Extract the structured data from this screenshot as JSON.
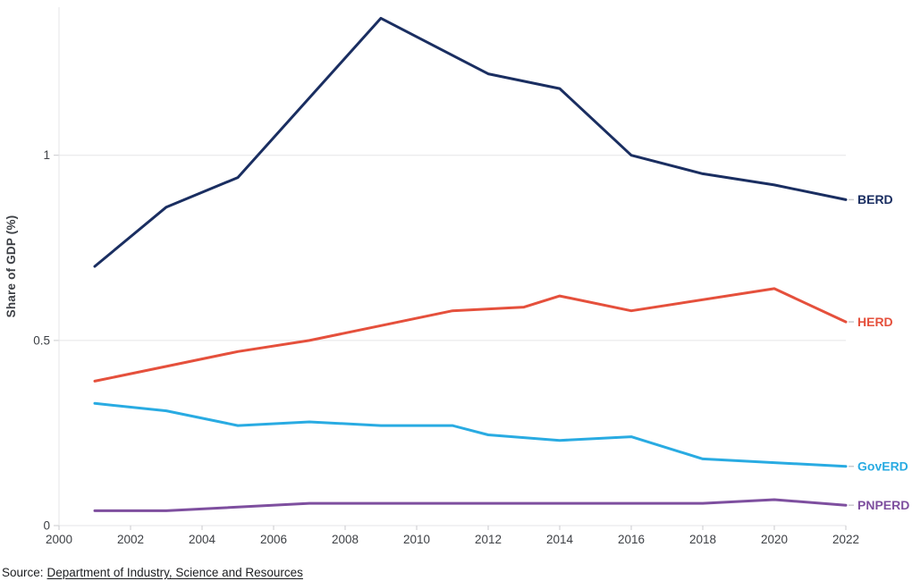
{
  "chart_data": {
    "type": "line",
    "title": "",
    "xlabel": "",
    "ylabel": "Share of GDP (%)",
    "xlim": [
      2000,
      2022
    ],
    "ylim": [
      0,
      1.4
    ],
    "x_ticks": [
      2000,
      2002,
      2004,
      2006,
      2008,
      2010,
      2012,
      2014,
      2016,
      2018,
      2020,
      2022
    ],
    "y_ticks": [
      {
        "value": 0,
        "label": "0"
      },
      {
        "value": 0.5,
        "label": "0.5"
      },
      {
        "value": 1,
        "label": "1"
      }
    ],
    "grid": "horizontal-only",
    "legend_position": "end-of-line-labels-right",
    "grid_color": "#E5E5E7",
    "tick_color": "#C9CACD",
    "axis_text_color": "#3D4045",
    "series": [
      {
        "name": "BERD",
        "color": "#1A2E61",
        "points": [
          [
            2001,
            0.7
          ],
          [
            2003,
            0.86
          ],
          [
            2005,
            0.94
          ],
          [
            2009,
            1.37
          ],
          [
            2012,
            1.22
          ],
          [
            2014,
            1.18
          ],
          [
            2016,
            1.0
          ],
          [
            2018,
            0.95
          ],
          [
            2020,
            0.92
          ],
          [
            2022,
            0.88
          ]
        ]
      },
      {
        "name": "HERD",
        "color": "#E5503C",
        "points": [
          [
            2001,
            0.39
          ],
          [
            2003,
            0.43
          ],
          [
            2005,
            0.47
          ],
          [
            2007,
            0.5
          ],
          [
            2009,
            0.54
          ],
          [
            2011,
            0.58
          ],
          [
            2013,
            0.59
          ],
          [
            2014,
            0.62
          ],
          [
            2016,
            0.58
          ],
          [
            2020,
            0.64
          ],
          [
            2022,
            0.55
          ]
        ]
      },
      {
        "name": "GovERD",
        "color": "#29ABE2",
        "points": [
          [
            2001,
            0.33
          ],
          [
            2003,
            0.31
          ],
          [
            2005,
            0.27
          ],
          [
            2007,
            0.28
          ],
          [
            2009,
            0.27
          ],
          [
            2011,
            0.27
          ],
          [
            2012,
            0.245
          ],
          [
            2014,
            0.23
          ],
          [
            2016,
            0.24
          ],
          [
            2018,
            0.18
          ],
          [
            2020,
            0.17
          ],
          [
            2022,
            0.16
          ]
        ]
      },
      {
        "name": "PNPERD",
        "color": "#7E4F9F",
        "points": [
          [
            2001,
            0.04
          ],
          [
            2003,
            0.04
          ],
          [
            2007,
            0.06
          ],
          [
            2016,
            0.06
          ],
          [
            2018,
            0.06
          ],
          [
            2020,
            0.07
          ],
          [
            2022,
            0.055
          ]
        ]
      }
    ]
  },
  "source": {
    "prefix": "Source:",
    "link_text": "Department of Industry, Science and Resources"
  }
}
